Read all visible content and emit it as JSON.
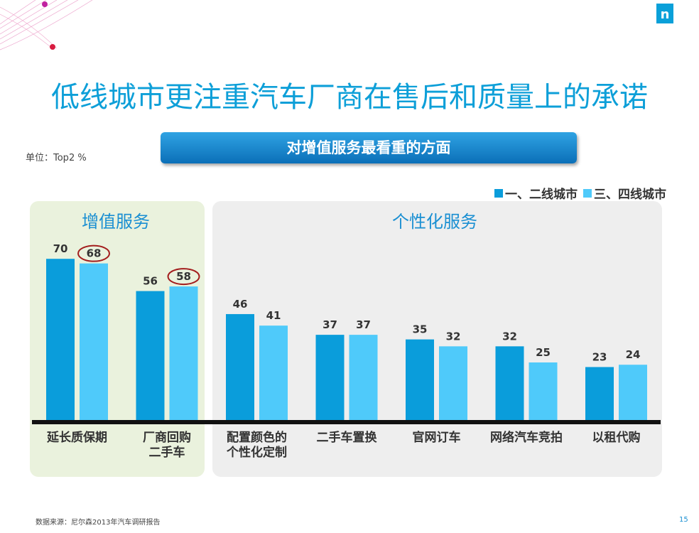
{
  "title": "低线城市更注重汽车厂商在售后和质量上的承诺",
  "subtitle": "对增值服务最看重的方面",
  "unit_label": "单位：Top2 %",
  "legend": [
    "一、二线城市",
    "三、四线城市"
  ],
  "group_titles": [
    "增值服务",
    "个性化服务"
  ],
  "source": "数据来源：尼尔森2013年汽车调研报告",
  "page_number": "15",
  "logo_letter": "n",
  "colors": {
    "series1": "#0a9ddb",
    "series2": "#4fcafa",
    "accent": "#0d9fd8",
    "highlight_circle": "#a31d1d"
  },
  "chart_data": {
    "type": "bar",
    "categories": [
      [
        "延长质保期"
      ],
      [
        "厂商回购",
        "二手车"
      ],
      [
        "配置颜色的",
        "个性化定制"
      ],
      [
        "二手车置换"
      ],
      [
        "官网订车"
      ],
      [
        "网络汽车竞拍"
      ],
      [
        "以租代购"
      ]
    ],
    "series": [
      {
        "name": "一、二线城市",
        "values": [
          70,
          56,
          46,
          37,
          35,
          32,
          23
        ]
      },
      {
        "name": "三、四线城市",
        "values": [
          68,
          58,
          41,
          37,
          32,
          25,
          24
        ]
      }
    ],
    "highlighted": [
      {
        "series": 1,
        "category": 0
      },
      {
        "series": 1,
        "category": 1
      }
    ],
    "groups": [
      {
        "name": "增值服务",
        "categories": [
          0,
          1
        ]
      },
      {
        "name": "个性化服务",
        "categories": [
          2,
          3,
          4,
          5,
          6
        ]
      }
    ],
    "ylim": [
      0,
      100
    ],
    "grid": false,
    "legend_position": "top-right"
  }
}
